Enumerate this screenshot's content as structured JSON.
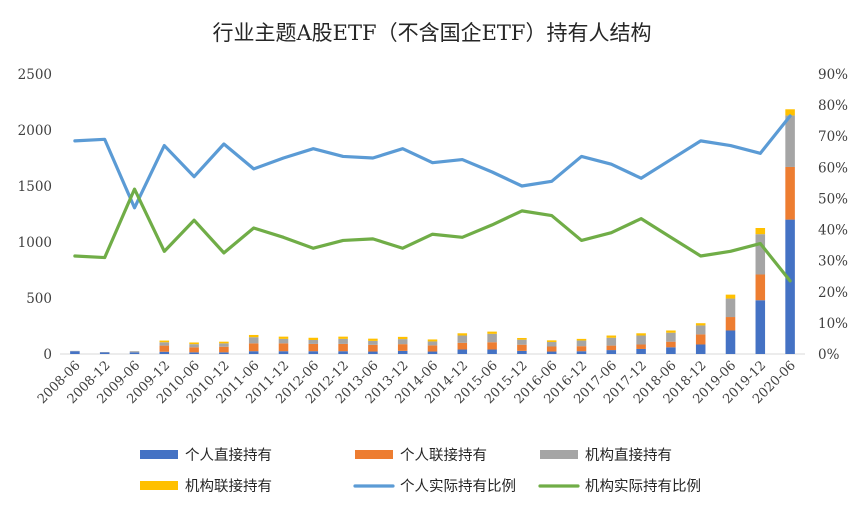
{
  "chart_data": {
    "type": "bar",
    "title": "行业主题A股ETF（不含国企ETF）持有人结构",
    "categories": [
      "2008-06",
      "2008-12",
      "2009-06",
      "2009-12",
      "2010-06",
      "2010-12",
      "2011-06",
      "2011-12",
      "2012-06",
      "2012-12",
      "2013-06",
      "2013-12",
      "2014-06",
      "2014-12",
      "2015-06",
      "2015-12",
      "2016-06",
      "2016-12",
      "2017-06",
      "2017-12",
      "2018-06",
      "2018-12",
      "2019-06",
      "2019-12",
      "2020-06"
    ],
    "left_axis": {
      "ylim": [
        0,
        2500
      ],
      "ticks": [
        "0",
        "500",
        "1000",
        "1500",
        "2000",
        "2500"
      ]
    },
    "right_axis": {
      "ylim": [
        0,
        90
      ],
      "ticks": [
        "0%",
        "10%",
        "20%",
        "30%",
        "40%",
        "50%",
        "60%",
        "70%",
        "80%",
        "90%"
      ]
    },
    "series": [
      {
        "name": "个人直接持有",
        "kind": "bar",
        "axis": "left",
        "color": "#4472C4",
        "values": [
          25,
          15,
          15,
          20,
          15,
          15,
          25,
          25,
          25,
          25,
          22,
          28,
          22,
          40,
          40,
          28,
          22,
          25,
          35,
          45,
          60,
          85,
          210,
          480,
          1200
        ]
      },
      {
        "name": "个人联接持有",
        "kind": "bar",
        "axis": "left",
        "color": "#ED7D31",
        "values": [
          0,
          0,
          0,
          55,
          45,
          50,
          70,
          70,
          65,
          65,
          60,
          60,
          55,
          60,
          65,
          55,
          45,
          45,
          40,
          40,
          50,
          90,
          120,
          230,
          470
        ]
      },
      {
        "name": "机构直接持有",
        "kind": "bar",
        "axis": "left",
        "color": "#A5A5A5",
        "values": [
          3,
          3,
          10,
          30,
          28,
          30,
          55,
          40,
          35,
          45,
          35,
          45,
          35,
          65,
          75,
          45,
          40,
          50,
          70,
          80,
          80,
          80,
          165,
          360,
          460
        ]
      },
      {
        "name": "机构联接持有",
        "kind": "bar",
        "axis": "left",
        "color": "#FFC000",
        "values": [
          0,
          0,
          0,
          15,
          15,
          15,
          20,
          20,
          20,
          20,
          20,
          20,
          18,
          20,
          20,
          15,
          15,
          15,
          20,
          20,
          20,
          20,
          35,
          55,
          55
        ]
      },
      {
        "name": "个人实际持有比例",
        "kind": "line",
        "axis": "right",
        "color": "#5B9BD5",
        "values": [
          68.5,
          69,
          47,
          67,
          57,
          67.5,
          59.5,
          63,
          66,
          63.5,
          63,
          66,
          61.5,
          62.5,
          58.5,
          54,
          55.5,
          63.5,
          61,
          56.5,
          62.5,
          68.5,
          67,
          64.5,
          76.5
        ]
      },
      {
        "name": "机构实际持有比例",
        "kind": "line",
        "axis": "right",
        "color": "#70AD47",
        "values": [
          31.5,
          31,
          53,
          33,
          43,
          32.5,
          40.5,
          37.5,
          34,
          36.5,
          37,
          34,
          38.5,
          37.5,
          41.5,
          46,
          44.5,
          36.5,
          39,
          43.5,
          37.5,
          31.5,
          33,
          35.5,
          23.5
        ]
      }
    ],
    "legend": "bottom",
    "grid": false
  }
}
